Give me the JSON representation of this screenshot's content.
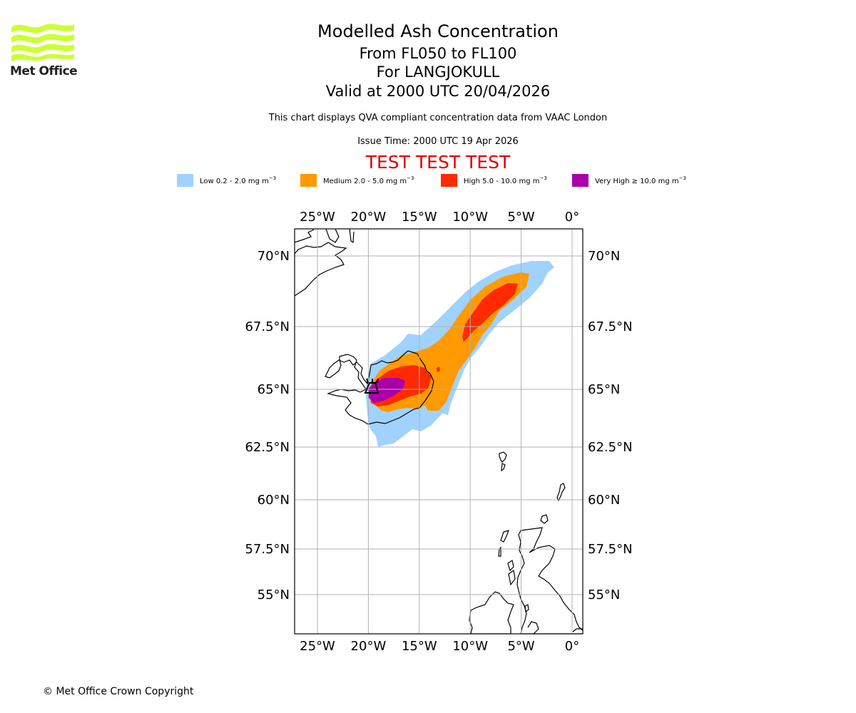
{
  "logo": {
    "name": "Met Office",
    "wave_color": "#ccff33"
  },
  "header": {
    "title": "Modelled Ash Concentration",
    "levels": "From FL050 to FL100",
    "volcano": "For LANGJOKULL",
    "valid": "Valid at 2000 UTC 20/04/2026",
    "subtitle": "This chart displays QVA compliant concentration data from VAAC London",
    "issue_time": "Issue Time: 2000 UTC 19 Apr 2026",
    "test_banner": "TEST TEST TEST",
    "test_color": "#e00000"
  },
  "legend": [
    {
      "label": "Low 0.2 - 2.0 mg m",
      "unit_exp": "−3",
      "color": "#a0d2ff"
    },
    {
      "label": "Medium 2.0 - 5.0 mg m",
      "unit_exp": "−3",
      "color": "#ff9a00"
    },
    {
      "label": "High 5.0 - 10.0 mg m",
      "unit_exp": "−3",
      "color": "#ff2a00"
    },
    {
      "label": "Very High  ≥  10.0 mg m",
      "unit_exp": "−3",
      "color": "#aa00aa"
    }
  ],
  "map": {
    "lon_range": [
      -27.2,
      1.1
    ],
    "lat_range": [
      53.5,
      71.2
    ],
    "lon_ticks": [
      {
        "value": -25,
        "label": "25°W"
      },
      {
        "value": -20,
        "label": "20°W"
      },
      {
        "value": -15,
        "label": "15°W"
      },
      {
        "value": -10,
        "label": "10°W"
      },
      {
        "value": -5,
        "label": "5°W"
      },
      {
        "value": 0,
        "label": "0°"
      }
    ],
    "lat_ticks": [
      {
        "value": 70,
        "label": "70°N"
      },
      {
        "value": 67.5,
        "label": "67.5°N"
      },
      {
        "value": 65,
        "label": "65°N"
      },
      {
        "value": 62.5,
        "label": "62.5°N"
      },
      {
        "value": 60,
        "label": "60°N"
      },
      {
        "value": 57.5,
        "label": "57.5°N"
      },
      {
        "value": 55,
        "label": "55°N"
      }
    ],
    "volcano_marker": {
      "name": "LANGJOKULL",
      "lon": -20.2,
      "lat": 64.9
    }
  },
  "footer": {
    "copyright": "© Met Office Crown Copyright"
  }
}
